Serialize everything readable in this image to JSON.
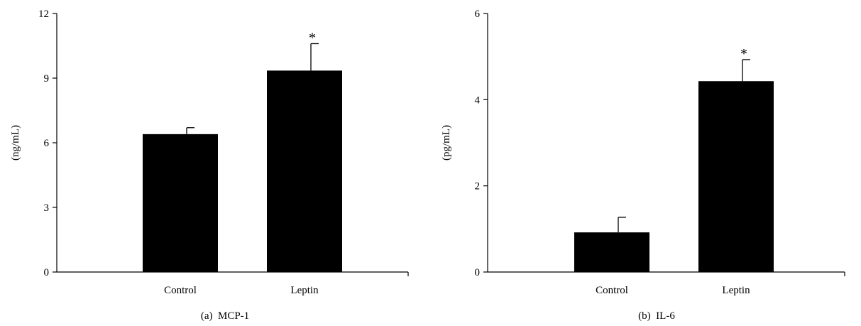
{
  "chart_data": [
    {
      "type": "bar",
      "caption": "(a)  MCP-1",
      "ylabel": "(ng/mL)",
      "categories": [
        "Control",
        "Leptin"
      ],
      "values": [
        6.4,
        9.35
      ],
      "errors": [
        0.3,
        1.25
      ],
      "annotations": [
        "",
        "*"
      ],
      "ylim": [
        0,
        12
      ],
      "yticks": [
        0,
        3,
        6,
        9,
        12
      ],
      "grid": false,
      "bar_color": "#000000"
    },
    {
      "type": "bar",
      "caption": "(b)  IL-6",
      "ylabel": "(pg/mL)",
      "categories": [
        "Control",
        "Leptin"
      ],
      "values": [
        0.92,
        4.43
      ],
      "errors": [
        0.35,
        0.5
      ],
      "annotations": [
        "",
        "*"
      ],
      "ylim": [
        0,
        6
      ],
      "yticks": [
        0,
        2,
        4,
        6
      ],
      "grid": false,
      "bar_color": "#000000"
    }
  ]
}
